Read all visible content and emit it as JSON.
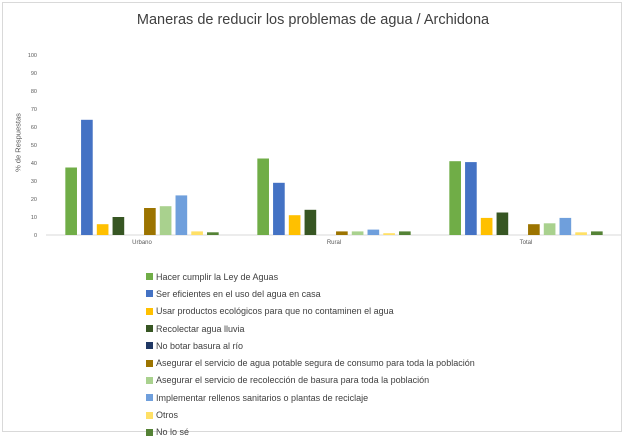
{
  "chart_data": {
    "type": "bar",
    "title": "Maneras de reducir los problemas de agua / Archidona",
    "ylabel": "% de Respuestas",
    "xlabel": "",
    "ylim": [
      0,
      100
    ],
    "yticks": [
      0,
      10,
      20,
      30,
      40,
      50,
      60,
      70,
      80,
      90,
      100
    ],
    "grid": false,
    "legend_position": "bottom",
    "categories": [
      "Urbano",
      "Rural",
      "Total"
    ],
    "series": [
      {
        "name": "Hacer cumplir la Ley de Aguas",
        "color": "#70ad47",
        "values": [
          37.5,
          42.5,
          41
        ]
      },
      {
        "name": "Ser eficientes en el uso del agua en casa",
        "color": "#4472c4",
        "values": [
          64,
          29,
          40.5
        ]
      },
      {
        "name": "Usar productos ecológicos para que no contaminen el agua",
        "color": "#ffc000",
        "values": [
          6,
          11,
          9.5
        ]
      },
      {
        "name": "Recolectar agua lluvia",
        "color": "#375623",
        "values": [
          10,
          14,
          12.5
        ]
      },
      {
        "name": "No botar basura al río",
        "color": "#203864",
        "values": [
          0,
          0,
          0
        ]
      },
      {
        "name": "Asegurar el servicio de agua potable segura de consumo para toda la población",
        "color": "#9c7400",
        "values": [
          15,
          2,
          6
        ]
      },
      {
        "name": "Asegurar el servicio de recolección de basura para toda la población",
        "color": "#a9d18e",
        "values": [
          16,
          2,
          6.5
        ]
      },
      {
        "name": "Implementar rellenos sanitarios o plantas de reciclaje",
        "color": "#6f9fdc",
        "values": [
          22,
          3,
          9.5
        ]
      },
      {
        "name": "Otros",
        "color": "#ffe066",
        "values": [
          2,
          1,
          1.5
        ]
      },
      {
        "name": "No lo sé",
        "color": "#548235",
        "values": [
          1.5,
          2,
          2
        ]
      }
    ]
  }
}
